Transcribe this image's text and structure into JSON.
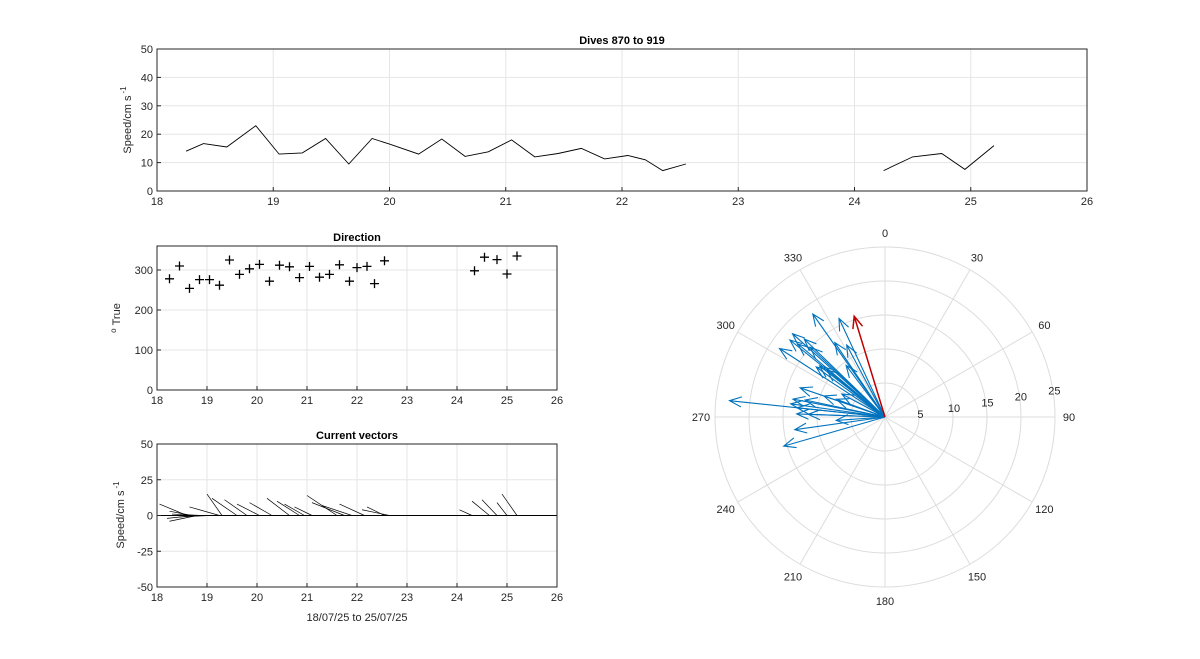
{
  "chart_data": [
    {
      "type": "line",
      "title": "Dives 870 to 919",
      "xlabel": "",
      "ylabel": "Speed/cm s",
      "ylabel_superscript": "-1",
      "xlim": [
        18,
        26
      ],
      "ylim": [
        0,
        50
      ],
      "xticks": [
        18,
        19,
        20,
        21,
        22,
        23,
        24,
        25,
        26
      ],
      "yticks": [
        0,
        10,
        20,
        30,
        40,
        50
      ],
      "grid": true,
      "series": [
        {
          "color": "#000000",
          "segments": [
            {
              "x": [
                18.25,
                18.4,
                18.6,
                18.85,
                19.05,
                19.25,
                19.45,
                19.65,
                19.85,
                20.0,
                20.25,
                20.45,
                20.65,
                20.85,
                21.05,
                21.25,
                21.45,
                21.65,
                21.85,
                22.05,
                22.2,
                22.35,
                22.55
              ],
              "y": [
                14,
                16.7,
                15.5,
                23,
                13,
                13.4,
                18.5,
                9.5,
                18.5,
                16.5,
                13,
                18.3,
                12.2,
                13.8,
                18,
                12,
                13.2,
                15,
                11.3,
                12.5,
                11,
                7.2,
                9.5
              ]
            },
            {
              "x": [
                24.25,
                24.5,
                24.75,
                24.95,
                25.2
              ],
              "y": [
                7.2,
                12,
                13.2,
                7.6,
                16
              ]
            }
          ]
        }
      ]
    },
    {
      "type": "scatter",
      "title": "Direction",
      "xlabel": "",
      "ylabel": "True",
      "ylabel_prefix": "o",
      "xlim": [
        18,
        26
      ],
      "ylim": [
        0,
        360
      ],
      "xticks": [
        18,
        19,
        20,
        21,
        22,
        23,
        24,
        25,
        26
      ],
      "yticks": [
        0,
        100,
        200,
        300
      ],
      "grid": true,
      "marker": "+",
      "series": [
        {
          "color": "#000000",
          "x": [
            18.25,
            18.45,
            18.65,
            18.85,
            19.05,
            19.25,
            19.45,
            19.65,
            19.85,
            20.05,
            20.25,
            20.45,
            20.65,
            20.85,
            21.05,
            21.25,
            21.45,
            21.65,
            21.85,
            22.0,
            22.2,
            22.35,
            22.55,
            24.35,
            24.55,
            24.8,
            25.0,
            25.2
          ],
          "y": [
            278,
            310,
            254,
            276,
            276,
            262,
            325,
            289,
            303,
            314,
            272,
            312,
            308,
            281,
            309,
            282,
            289,
            313,
            272,
            306,
            309,
            266,
            323,
            298,
            332,
            326,
            290,
            335
          ]
        }
      ]
    },
    {
      "type": "quiver",
      "title": "Current vectors",
      "xlabel": "18/07/25 to 25/07/25",
      "ylabel": "Speed/cm s",
      "ylabel_superscript": "-1",
      "xlim": [
        18,
        26
      ],
      "ylim": [
        -50,
        50
      ],
      "xticks": [
        18,
        19,
        20,
        21,
        22,
        23,
        24,
        25,
        26
      ],
      "yticks": [
        -50,
        -25,
        0,
        25,
        50
      ],
      "grid": true,
      "vectors": [
        {
          "x": 18.6,
          "u": -0.55,
          "v": 8
        },
        {
          "x": 18.7,
          "u": -0.45,
          "v": 3
        },
        {
          "x": 18.75,
          "u": -0.55,
          "v": -2
        },
        {
          "x": 18.8,
          "u": -0.55,
          "v": -4
        },
        {
          "x": 18.9,
          "u": -0.6,
          "v": 1
        },
        {
          "x": 19.05,
          "u": -0.6,
          "v": -1
        },
        {
          "x": 19.25,
          "u": -0.6,
          "v": 6
        },
        {
          "x": 19.3,
          "u": -0.3,
          "v": 15
        },
        {
          "x": 19.6,
          "u": -0.5,
          "v": 12
        },
        {
          "x": 19.8,
          "u": -0.45,
          "v": 11
        },
        {
          "x": 20.05,
          "u": -0.45,
          "v": 8
        },
        {
          "x": 20.3,
          "u": -0.45,
          "v": 9
        },
        {
          "x": 20.65,
          "u": -0.45,
          "v": 12
        },
        {
          "x": 20.85,
          "u": -0.45,
          "v": 10
        },
        {
          "x": 20.95,
          "u": -0.4,
          "v": 8
        },
        {
          "x": 21.1,
          "u": -0.35,
          "v": 6
        },
        {
          "x": 21.6,
          "u": -0.6,
          "v": 14
        },
        {
          "x": 21.75,
          "u": -0.65,
          "v": 9
        },
        {
          "x": 21.9,
          "u": -0.6,
          "v": 7
        },
        {
          "x": 22.15,
          "u": -0.5,
          "v": 8
        },
        {
          "x": 22.55,
          "u": -0.35,
          "v": 6
        },
        {
          "x": 22.65,
          "u": -0.55,
          "v": 4
        },
        {
          "x": 24.3,
          "u": -0.25,
          "v": 4
        },
        {
          "x": 24.65,
          "u": -0.35,
          "v": 10
        },
        {
          "x": 24.8,
          "u": -0.3,
          "v": 11
        },
        {
          "x": 25.0,
          "u": -0.2,
          "v": 9
        },
        {
          "x": 25.2,
          "u": -0.3,
          "v": 15
        }
      ]
    },
    {
      "type": "polar-compass",
      "title": "",
      "rlim": [
        0,
        25
      ],
      "rticks": [
        5,
        10,
        15,
        20,
        25
      ],
      "theta_labels": [
        "0",
        "30",
        "60",
        "90",
        "120",
        "150",
        "180",
        "210",
        "240",
        "270",
        "300",
        "330"
      ],
      "theta_zero": "north",
      "theta_direction": "clockwise",
      "series": [
        {
          "color": "#0072bd",
          "vectors": [
            {
              "bearing": 278,
              "speed": 14
            },
            {
              "bearing": 310,
              "speed": 16.7
            },
            {
              "bearing": 254,
              "speed": 15.5
            },
            {
              "bearing": 276,
              "speed": 23
            },
            {
              "bearing": 276,
              "speed": 13
            },
            {
              "bearing": 262,
              "speed": 13.4
            },
            {
              "bearing": 325,
              "speed": 18.5
            },
            {
              "bearing": 289,
              "speed": 9.5
            },
            {
              "bearing": 303,
              "speed": 18.5
            },
            {
              "bearing": 314,
              "speed": 16.5
            },
            {
              "bearing": 272,
              "speed": 13
            },
            {
              "bearing": 312,
              "speed": 18.3
            },
            {
              "bearing": 308,
              "speed": 12.2
            },
            {
              "bearing": 281,
              "speed": 13.8
            },
            {
              "bearing": 309,
              "speed": 18
            },
            {
              "bearing": 282,
              "speed": 12
            },
            {
              "bearing": 289,
              "speed": 13.2
            },
            {
              "bearing": 313,
              "speed": 15
            },
            {
              "bearing": 272,
              "speed": 11.3
            },
            {
              "bearing": 306,
              "speed": 12.5
            },
            {
              "bearing": 309,
              "speed": 11
            },
            {
              "bearing": 266,
              "speed": 7.2
            },
            {
              "bearing": 323,
              "speed": 9.5
            },
            {
              "bearing": 298,
              "speed": 7.2
            },
            {
              "bearing": 332,
              "speed": 12
            },
            {
              "bearing": 326,
              "speed": 13.2
            },
            {
              "bearing": 290,
              "speed": 7.6
            },
            {
              "bearing": 335,
              "speed": 16
            }
          ]
        },
        {
          "color": "#c00000",
          "vectors": [
            {
              "bearing": 343,
              "speed": 15.5
            }
          ]
        }
      ]
    }
  ]
}
